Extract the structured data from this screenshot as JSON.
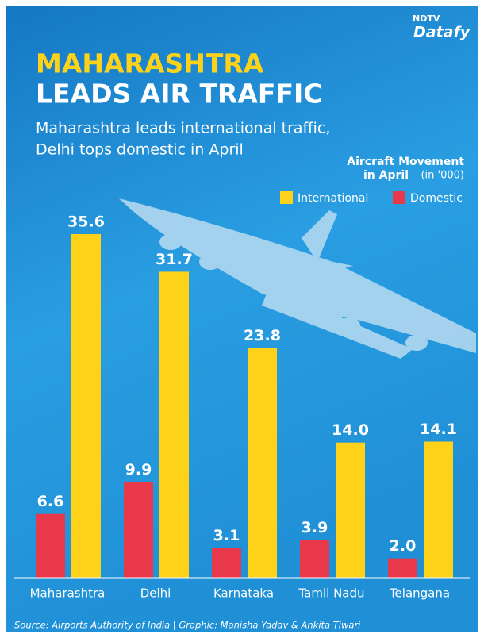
{
  "chart_data": {
    "type": "bar",
    "title": [
      "MAHARASHTRA",
      "LEADS AIR TRAFFIC"
    ],
    "subtitle": [
      "Maharashtra leads international traffic,",
      "Delhi tops domestic in April"
    ],
    "legend_title": [
      "Aircraft Movement",
      "in April",
      "(in '000)"
    ],
    "brand": [
      "NDTV",
      "Datafy"
    ],
    "source": "Source: Airports Authority of India | Graphic: Manisha Yadav & Ankita Tiwari",
    "categories": [
      "Maharashtra",
      "Delhi",
      "Karnataka",
      "Tamil Nadu",
      "Telangana"
    ],
    "series": [
      {
        "name": "International",
        "color": "#ffd21a",
        "values": [
          35.6,
          31.7,
          23.8,
          14.0,
          14.1
        ],
        "value_labels": [
          "35.6",
          "31.7",
          "23.8",
          "14.0",
          "14.1"
        ]
      },
      {
        "name": "Domestic",
        "color": "#e8384a",
        "values": [
          6.6,
          9.9,
          3.1,
          3.9,
          2.0
        ],
        "value_labels": [
          "6.6",
          "9.9",
          "3.1",
          "3.9",
          "2.0"
        ]
      }
    ]
  }
}
